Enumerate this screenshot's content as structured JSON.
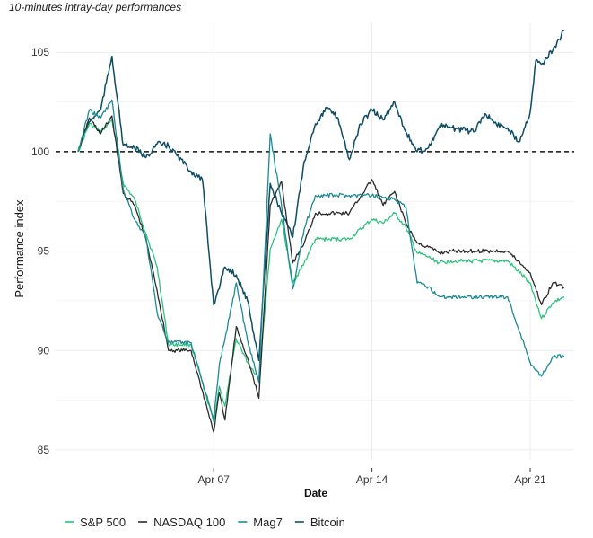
{
  "chart_data": {
    "type": "line",
    "subtitle": "10-minutes intray-day performances",
    "title": "",
    "xlabel": "Date",
    "ylabel": "Performance index",
    "x_ticks": [
      "Apr 07",
      "Apr 14",
      "Apr 21"
    ],
    "y_ticks": [
      85,
      90,
      95,
      100,
      105
    ],
    "ylim": [
      84.5,
      106.5
    ],
    "xlim": [
      "2025-04-01",
      "2025-04-23"
    ],
    "reference_line": {
      "y": 100,
      "style": "dashed",
      "color": "#111111"
    },
    "grid": true,
    "legend_position": "bottom",
    "series": [
      {
        "name": "S&P 500",
        "color": "#2ec27e",
        "points": [
          [
            "2025-04-01",
            100
          ],
          [
            "2025-04-01 12:00",
            101.4
          ],
          [
            "2025-04-02",
            101.0
          ],
          [
            "2025-04-02 12:00",
            101.6
          ],
          [
            "2025-04-03",
            98.4
          ],
          [
            "2025-04-03 12:00",
            97.6
          ],
          [
            "2025-04-04",
            95.9
          ],
          [
            "2025-04-04 12:00",
            94.2
          ],
          [
            "2025-04-05",
            90.3
          ],
          [
            "2025-04-06",
            90.3
          ],
          [
            "2025-04-07",
            86.4
          ],
          [
            "2025-04-07 06:00",
            88.2
          ],
          [
            "2025-04-07 12:00",
            87.2
          ],
          [
            "2025-04-08",
            90.6
          ],
          [
            "2025-04-08 12:00",
            89.4
          ],
          [
            "2025-04-09",
            88.6
          ],
          [
            "2025-04-09 12:00",
            95.1
          ],
          [
            "2025-04-10",
            96.6
          ],
          [
            "2025-04-10 12:00",
            93.4
          ],
          [
            "2025-04-11",
            94.4
          ],
          [
            "2025-04-11 12:00",
            95.6
          ],
          [
            "2025-04-12",
            95.6
          ],
          [
            "2025-04-13",
            95.6
          ],
          [
            "2025-04-14",
            96.6
          ],
          [
            "2025-04-14 12:00",
            96.4
          ],
          [
            "2025-04-15",
            96.9
          ],
          [
            "2025-04-15 12:00",
            96.2
          ],
          [
            "2025-04-16",
            94.9
          ],
          [
            "2025-04-16 12:00",
            94.7
          ],
          [
            "2025-04-17",
            94.4
          ],
          [
            "2025-04-17 12:00",
            94.5
          ],
          [
            "2025-04-18",
            94.5
          ],
          [
            "2025-04-20",
            94.5
          ],
          [
            "2025-04-21",
            93.4
          ],
          [
            "2025-04-21 12:00",
            91.6
          ],
          [
            "2025-04-22",
            92.4
          ],
          [
            "2025-04-22 12:00",
            92.7
          ]
        ]
      },
      {
        "name": "NASDAQ 100",
        "color": "#2b2b2b",
        "points": [
          [
            "2025-04-01",
            100
          ],
          [
            "2025-04-01 12:00",
            101.7
          ],
          [
            "2025-04-02",
            100.9
          ],
          [
            "2025-04-02 12:00",
            101.8
          ],
          [
            "2025-04-03",
            97.9
          ],
          [
            "2025-04-03 12:00",
            97.3
          ],
          [
            "2025-04-04",
            95.6
          ],
          [
            "2025-04-04 12:00",
            93.0
          ],
          [
            "2025-04-05",
            90.0
          ],
          [
            "2025-04-06",
            90.0
          ],
          [
            "2025-04-07",
            85.9
          ],
          [
            "2025-04-07 06:00",
            87.9
          ],
          [
            "2025-04-07 12:00",
            86.5
          ],
          [
            "2025-04-08",
            91.2
          ],
          [
            "2025-04-08 12:00",
            89.6
          ],
          [
            "2025-04-09",
            87.6
          ],
          [
            "2025-04-09 12:00",
            97.3
          ],
          [
            "2025-04-10",
            98.5
          ],
          [
            "2025-04-10 12:00",
            94.4
          ],
          [
            "2025-04-11",
            95.4
          ],
          [
            "2025-04-11 12:00",
            96.9
          ],
          [
            "2025-04-12",
            96.9
          ],
          [
            "2025-04-13",
            96.9
          ],
          [
            "2025-04-14",
            98.6
          ],
          [
            "2025-04-14 12:00",
            97.3
          ],
          [
            "2025-04-15",
            98.0
          ],
          [
            "2025-04-15 12:00",
            96.4
          ],
          [
            "2025-04-16",
            95.4
          ],
          [
            "2025-04-16 12:00",
            95.2
          ],
          [
            "2025-04-17",
            94.9
          ],
          [
            "2025-04-17 12:00",
            95.0
          ],
          [
            "2025-04-18",
            95.0
          ],
          [
            "2025-04-20",
            95.0
          ],
          [
            "2025-04-21",
            93.9
          ],
          [
            "2025-04-21 12:00",
            92.3
          ],
          [
            "2025-04-22",
            93.4
          ],
          [
            "2025-04-22 12:00",
            93.2
          ]
        ]
      },
      {
        "name": "Mag7",
        "color": "#1b8a94",
        "points": [
          [
            "2025-04-01",
            100
          ],
          [
            "2025-04-01 12:00",
            102.1
          ],
          [
            "2025-04-02",
            101.7
          ],
          [
            "2025-04-02 12:00",
            102.6
          ],
          [
            "2025-04-03",
            98.1
          ],
          [
            "2025-04-03 12:00",
            96.6
          ],
          [
            "2025-04-04",
            95.7
          ],
          [
            "2025-04-04 12:00",
            91.9
          ],
          [
            "2025-04-05",
            90.4
          ],
          [
            "2025-04-06",
            90.4
          ],
          [
            "2025-04-07",
            86.5
          ],
          [
            "2025-04-07 06:00",
            89.3
          ],
          [
            "2025-04-07 12:00",
            90.6
          ],
          [
            "2025-04-08",
            93.4
          ],
          [
            "2025-04-08 12:00",
            90.5
          ],
          [
            "2025-04-09",
            88.4
          ],
          [
            "2025-04-09 12:00",
            100.9
          ],
          [
            "2025-04-10",
            97.3
          ],
          [
            "2025-04-10 12:00",
            93.1
          ],
          [
            "2025-04-11",
            96.1
          ],
          [
            "2025-04-11 12:00",
            97.8
          ],
          [
            "2025-04-12",
            97.8
          ],
          [
            "2025-04-13",
            97.8
          ],
          [
            "2025-04-14",
            97.8
          ],
          [
            "2025-04-14 12:00",
            97.7
          ],
          [
            "2025-04-15",
            97.6
          ],
          [
            "2025-04-15 12:00",
            97.2
          ],
          [
            "2025-04-16",
            93.4
          ],
          [
            "2025-04-16 12:00",
            93.2
          ],
          [
            "2025-04-17",
            92.7
          ],
          [
            "2025-04-17 12:00",
            92.7
          ],
          [
            "2025-04-18",
            92.7
          ],
          [
            "2025-04-20",
            92.7
          ],
          [
            "2025-04-21",
            89.4
          ],
          [
            "2025-04-21 12:00",
            88.7
          ],
          [
            "2025-04-22",
            89.7
          ],
          [
            "2025-04-22 12:00",
            89.7
          ]
        ]
      },
      {
        "name": "Bitcoin",
        "color": "#0d4d62",
        "points": [
          [
            "2025-04-01",
            100
          ],
          [
            "2025-04-01 12:00",
            101.5
          ],
          [
            "2025-04-02",
            102.1
          ],
          [
            "2025-04-02 12:00",
            104.8
          ],
          [
            "2025-04-03",
            100.3
          ],
          [
            "2025-04-03 12:00",
            100.2
          ],
          [
            "2025-04-04",
            99.7
          ],
          [
            "2025-04-04 12:00",
            100.4
          ],
          [
            "2025-04-05",
            100.3
          ],
          [
            "2025-04-06",
            99.0
          ],
          [
            "2025-04-06 12:00",
            98.6
          ],
          [
            "2025-04-07",
            92.3
          ],
          [
            "2025-04-07 12:00",
            94.2
          ],
          [
            "2025-04-08",
            93.8
          ],
          [
            "2025-04-08 12:00",
            92.5
          ],
          [
            "2025-04-09",
            89.5
          ],
          [
            "2025-04-09 12:00",
            98.4
          ],
          [
            "2025-04-10",
            96.9
          ],
          [
            "2025-04-10 12:00",
            95.7
          ],
          [
            "2025-04-11",
            99.5
          ],
          [
            "2025-04-11 12:00",
            101.4
          ],
          [
            "2025-04-12",
            102.2
          ],
          [
            "2025-04-12 12:00",
            101.7
          ],
          [
            "2025-04-13",
            99.6
          ],
          [
            "2025-04-13 12:00",
            101.4
          ],
          [
            "2025-04-14",
            102.1
          ],
          [
            "2025-04-14 12:00",
            101.6
          ],
          [
            "2025-04-15",
            102.5
          ],
          [
            "2025-04-15 12:00",
            101.0
          ],
          [
            "2025-04-16",
            100.0
          ],
          [
            "2025-04-16 12:00",
            100.2
          ],
          [
            "2025-04-17",
            101.3
          ],
          [
            "2025-04-17 12:00",
            101.2
          ],
          [
            "2025-04-18",
            101.1
          ],
          [
            "2025-04-18 12:00",
            101.0
          ],
          [
            "2025-04-19",
            101.9
          ],
          [
            "2025-04-19 12:00",
            101.4
          ],
          [
            "2025-04-20",
            101.2
          ],
          [
            "2025-04-20 12:00",
            100.5
          ],
          [
            "2025-04-21",
            102.0
          ],
          [
            "2025-04-21 06:00",
            104.6
          ],
          [
            "2025-04-21 12:00",
            104.4
          ],
          [
            "2025-04-22",
            105.1
          ],
          [
            "2025-04-22 12:00",
            106.1
          ]
        ]
      }
    ]
  }
}
